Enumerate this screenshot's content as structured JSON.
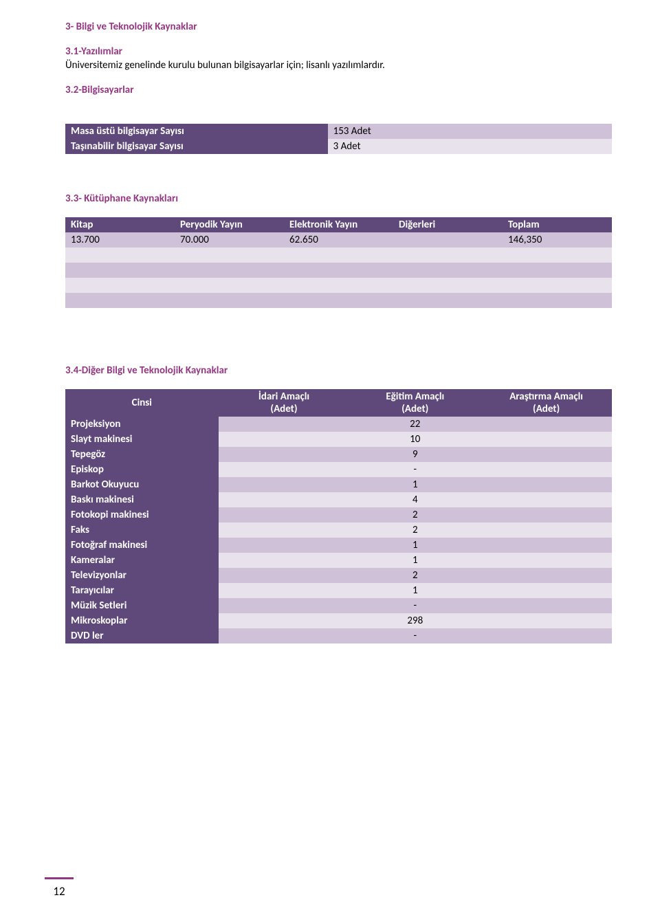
{
  "colors": {
    "heading": "#943682",
    "table_header_bg": "#5f497a",
    "table_header_fg": "#ffffff",
    "stripe_dark": "#cfc1d7",
    "stripe_light": "#e8e2ec",
    "page_bg": "#ffffff",
    "body_text": "#000000"
  },
  "typography": {
    "font_family": "Calibri",
    "body_size_pt": 11,
    "heading_size_pt": 11,
    "heading_weight": "bold"
  },
  "page_number": "12",
  "section3": {
    "title": "3- Bilgi ve Teknolojik Kaynaklar",
    "s31": {
      "title": "3.1-Yazılımlar",
      "text": "Üniversitemiz genelinde kurulu bulunan bilgisayarlar için; lisanlı yazılımlardır."
    },
    "s32": {
      "title": "3.2-Bilgisayarlar",
      "table": {
        "type": "table",
        "col_widths_pct": [
          48,
          52
        ],
        "rows": [
          {
            "label": "Masa üstü bilgisayar Sayısı",
            "value": "153 Adet"
          },
          {
            "label": "Taşınabilir bilgisayar Sayısı",
            "value": "3 Adet"
          }
        ],
        "row_backgrounds": [
          "#cfc1d7",
          "#e8e2ec"
        ],
        "label_fg": "#ffffff",
        "label_bg": "#5f497a"
      }
    },
    "s33": {
      "title": "3.3- Kütüphane Kaynakları",
      "table": {
        "type": "table",
        "columns": [
          "Kitap",
          "Peryodik Yayın",
          "Elektronik Yayın",
          "Diğerleri",
          "Toplam"
        ],
        "col_widths_pct": [
          20,
          20,
          20,
          20,
          20
        ],
        "rows": [
          [
            "13.700",
            "70.000",
            "62.650",
            "",
            "146,350"
          ],
          [
            "",
            "",
            "",
            "",
            ""
          ],
          [
            "",
            "",
            "",
            "",
            ""
          ],
          [
            "",
            "",
            "",
            "",
            ""
          ],
          [
            "",
            "",
            "",
            "",
            ""
          ]
        ],
        "header_bg": "#5f497a",
        "header_fg": "#ffffff",
        "row_backgrounds": [
          "#cfc1d7",
          "#e8e2ec",
          "#cfc1d7",
          "#e8e2ec",
          "#cfc1d7"
        ]
      }
    },
    "s34": {
      "title": "3.4-Diğer Bilgi ve Teknolojik Kaynaklar",
      "table": {
        "type": "table",
        "columns": [
          "Cinsi",
          "İdari Amaçlı\n(Adet)",
          "Eğitim Amaçlı\n(Adet)",
          "Araştırma Amaçlı\n(Adet)"
        ],
        "columns_line1": [
          "Cinsi",
          "İdari Amaçlı",
          "Eğitim Amaçlı",
          "Araştırma Amaçlı"
        ],
        "columns_line2": [
          "",
          "(Adet)",
          "(Adet)",
          "(Adet)"
        ],
        "col_widths_pct": [
          28,
          24,
          24,
          24
        ],
        "col_align": [
          "left",
          "center",
          "center",
          "center"
        ],
        "header_bg": "#5f497a",
        "header_fg": "#ffffff",
        "rows": [
          {
            "name": "Projeksiyon",
            "idari": "",
            "egitim": "22",
            "arastirma": ""
          },
          {
            "name": "Slayt makinesi",
            "idari": "",
            "egitim": "10",
            "arastirma": ""
          },
          {
            "name": "Tepegöz",
            "idari": "",
            "egitim": "9",
            "arastirma": ""
          },
          {
            "name": "Episkop",
            "idari": "",
            "egitim": "-",
            "arastirma": ""
          },
          {
            "name": "Barkot Okuyucu",
            "idari": "",
            "egitim": "1",
            "arastirma": ""
          },
          {
            "name": "Baskı makinesi",
            "idari": "",
            "egitim": "4",
            "arastirma": ""
          },
          {
            "name": "Fotokopi makinesi",
            "idari": "",
            "egitim": "2",
            "arastirma": ""
          },
          {
            "name": "Faks",
            "idari": "",
            "egitim": "2",
            "arastirma": ""
          },
          {
            "name": "Fotoğraf makinesi",
            "idari": "",
            "egitim": "1",
            "arastirma": ""
          },
          {
            "name": "Kameralar",
            "idari": "",
            "egitim": "1",
            "arastirma": ""
          },
          {
            "name": "Televizyonlar",
            "idari": "",
            "egitim": "2",
            "arastirma": ""
          },
          {
            "name": "Tarayıcılar",
            "idari": "",
            "egitim": "1",
            "arastirma": ""
          },
          {
            "name": "Müzik Setleri",
            "idari": "",
            "egitim": "-",
            "arastirma": ""
          },
          {
            "name": "Mikroskoplar",
            "idari": "",
            "egitim": "298",
            "arastirma": ""
          },
          {
            "name": "DVD ler",
            "idari": "",
            "egitim": "-",
            "arastirma": ""
          }
        ],
        "row_backgrounds": [
          "#cfc1d7",
          "#e8e2ec",
          "#cfc1d7",
          "#e8e2ec",
          "#cfc1d7",
          "#e8e2ec",
          "#cfc1d7",
          "#e8e2ec",
          "#cfc1d7",
          "#e8e2ec",
          "#cfc1d7",
          "#e8e2ec",
          "#cfc1d7",
          "#e8e2ec",
          "#cfc1d7"
        ],
        "label_fg": "#ffffff",
        "label_bg": "#5f497a"
      }
    }
  }
}
